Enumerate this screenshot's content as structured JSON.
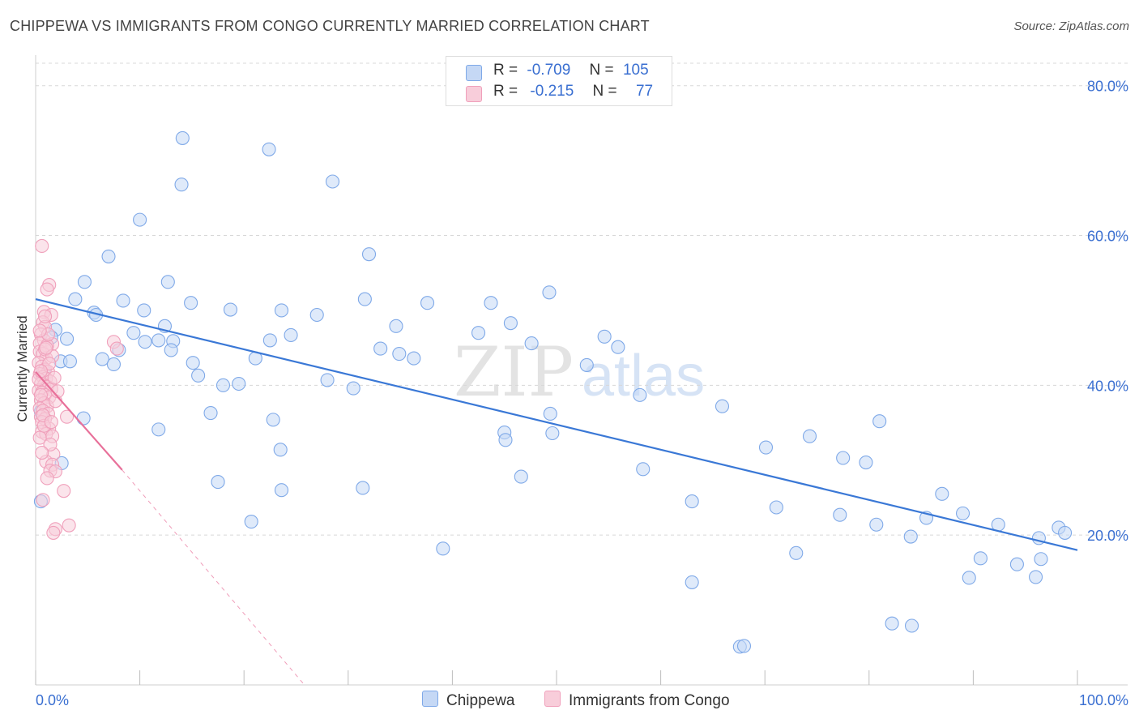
{
  "title": "CHIPPEWA VS IMMIGRANTS FROM CONGO CURRENTLY MARRIED CORRELATION CHART",
  "source": "Source: ZipAtlas.com",
  "watermark": {
    "zip": "ZIP",
    "atlas": "atlas"
  },
  "legend_top": {
    "rows": [
      {
        "r_label": "R =",
        "r_value": "-0.709",
        "n_label": "N =",
        "n_value": "105"
      },
      {
        "r_label": "R =",
        "r_value": "-0.215",
        "n_label": "N =",
        "n_value": "77"
      }
    ]
  },
  "chart_data": {
    "type": "scatter",
    "ylabel": "Currently Married",
    "xlim": [
      0,
      100
    ],
    "ylim": [
      0,
      83
    ],
    "x_tick_labels": [
      "0.0%",
      "100.0%"
    ],
    "y_ticks": [
      20,
      40,
      60,
      80
    ],
    "y_tick_labels": [
      "20.0%",
      "40.0%",
      "60.0%",
      "80.0%"
    ],
    "grid": "horizontal dashed",
    "legend_position": "bottom",
    "series": [
      {
        "name": "Chippewa",
        "color": "#7fa9e8",
        "fill": "#c5d8f5",
        "line_color": "#3a78d6",
        "trend": {
          "x1": 0,
          "y1": 51.5,
          "x2": 100,
          "y2": 18.0
        },
        "points": [
          [
            14.1,
            73.0
          ],
          [
            22.4,
            71.5
          ],
          [
            28.5,
            67.2
          ],
          [
            14.0,
            66.8
          ],
          [
            10.0,
            62.1
          ],
          [
            32.0,
            57.5
          ],
          [
            7.0,
            57.2
          ],
          [
            4.7,
            53.8
          ],
          [
            12.7,
            53.8
          ],
          [
            3.8,
            51.5
          ],
          [
            8.4,
            51.3
          ],
          [
            14.9,
            51.0
          ],
          [
            31.6,
            51.5
          ],
          [
            37.6,
            51.0
          ],
          [
            43.7,
            51.0
          ],
          [
            49.3,
            52.4
          ],
          [
            10.4,
            50.0
          ],
          [
            18.7,
            50.1
          ],
          [
            23.6,
            50.0
          ],
          [
            27.0,
            49.4
          ],
          [
            5.6,
            49.7
          ],
          [
            5.8,
            49.4
          ],
          [
            45.6,
            48.3
          ],
          [
            34.6,
            47.9
          ],
          [
            12.4,
            47.9
          ],
          [
            1.9,
            47.4
          ],
          [
            9.4,
            47.0
          ],
          [
            42.5,
            47.0
          ],
          [
            1.5,
            46.4
          ],
          [
            3.0,
            46.2
          ],
          [
            10.5,
            45.8
          ],
          [
            13.2,
            45.9
          ],
          [
            11.8,
            46.0
          ],
          [
            22.5,
            46.0
          ],
          [
            24.5,
            46.7
          ],
          [
            54.6,
            46.5
          ],
          [
            55.9,
            45.1
          ],
          [
            47.6,
            45.6
          ],
          [
            8.0,
            44.7
          ],
          [
            13.0,
            44.7
          ],
          [
            33.1,
            44.9
          ],
          [
            34.9,
            44.2
          ],
          [
            36.3,
            43.6
          ],
          [
            21.1,
            43.6
          ],
          [
            2.4,
            43.2
          ],
          [
            3.3,
            43.2
          ],
          [
            6.4,
            43.5
          ],
          [
            7.5,
            42.8
          ],
          [
            15.1,
            43.0
          ],
          [
            52.9,
            42.7
          ],
          [
            15.6,
            41.3
          ],
          [
            18.0,
            40.0
          ],
          [
            19.5,
            40.2
          ],
          [
            28.0,
            40.7
          ],
          [
            30.5,
            39.6
          ],
          [
            58.0,
            38.7
          ],
          [
            65.9,
            37.2
          ],
          [
            4.6,
            35.6
          ],
          [
            16.8,
            36.3
          ],
          [
            22.8,
            35.4
          ],
          [
            49.4,
            36.2
          ],
          [
            81.0,
            35.2
          ],
          [
            11.8,
            34.1
          ],
          [
            45.0,
            33.7
          ],
          [
            45.1,
            32.7
          ],
          [
            49.6,
            33.6
          ],
          [
            70.1,
            31.7
          ],
          [
            74.3,
            33.2
          ],
          [
            23.5,
            31.4
          ],
          [
            77.5,
            30.3
          ],
          [
            79.7,
            29.7
          ],
          [
            58.3,
            28.8
          ],
          [
            46.6,
            27.8
          ],
          [
            17.5,
            27.1
          ],
          [
            31.4,
            26.3
          ],
          [
            23.6,
            26.0
          ],
          [
            87.0,
            25.5
          ],
          [
            63.0,
            24.5
          ],
          [
            71.1,
            23.7
          ],
          [
            89.0,
            22.9
          ],
          [
            77.2,
            22.7
          ],
          [
            85.5,
            22.3
          ],
          [
            20.7,
            21.8
          ],
          [
            80.7,
            21.4
          ],
          [
            92.4,
            21.4
          ],
          [
            98.2,
            21.0
          ],
          [
            98.8,
            20.3
          ],
          [
            84.0,
            19.8
          ],
          [
            96.3,
            19.6
          ],
          [
            39.1,
            18.2
          ],
          [
            73.0,
            17.6
          ],
          [
            90.7,
            16.9
          ],
          [
            96.5,
            16.8
          ],
          [
            94.2,
            16.1
          ],
          [
            89.6,
            14.3
          ],
          [
            96.0,
            14.4
          ],
          [
            63.0,
            13.7
          ],
          [
            82.2,
            8.2
          ],
          [
            84.1,
            7.9
          ],
          [
            67.6,
            5.1
          ],
          [
            68.0,
            5.2
          ],
          [
            0.5,
            36.5
          ],
          [
            0.8,
            42.0
          ],
          [
            2.5,
            29.6
          ],
          [
            0.5,
            24.5
          ]
        ]
      },
      {
        "name": "Immigrants from Congo",
        "color": "#f0a0bb",
        "fill": "#f8cdda",
        "line_color": "#e8709a",
        "trend": {
          "x1": 0,
          "y1": 41.8,
          "x2": 8.3,
          "y2": 28.7
        },
        "trend_dashed": {
          "x1": 8.3,
          "y1": 28.7,
          "x2": 25.8,
          "y2": 0
        },
        "points": [
          [
            0.6,
            58.6
          ],
          [
            1.3,
            53.4
          ],
          [
            1.1,
            52.8
          ],
          [
            0.8,
            49.8
          ],
          [
            1.5,
            49.4
          ],
          [
            0.7,
            48.4
          ],
          [
            0.9,
            47.8
          ],
          [
            0.5,
            46.8
          ],
          [
            0.8,
            46.0
          ],
          [
            1.6,
            45.5
          ],
          [
            0.4,
            45.6
          ],
          [
            1.1,
            45.3
          ],
          [
            7.5,
            45.8
          ],
          [
            7.8,
            44.9
          ],
          [
            0.4,
            44.5
          ],
          [
            0.7,
            44.2
          ],
          [
            1.0,
            43.6
          ],
          [
            0.3,
            43.0
          ],
          [
            0.6,
            42.5
          ],
          [
            0.9,
            42.1
          ],
          [
            1.2,
            41.8
          ],
          [
            0.4,
            41.5
          ],
          [
            0.7,
            41.1
          ],
          [
            1.0,
            40.9
          ],
          [
            1.4,
            40.5
          ],
          [
            0.5,
            40.2
          ],
          [
            0.8,
            40.0
          ],
          [
            1.1,
            39.8
          ],
          [
            1.5,
            39.5
          ],
          [
            0.3,
            39.3
          ],
          [
            0.6,
            39.0
          ],
          [
            0.9,
            38.7
          ],
          [
            1.3,
            38.4
          ],
          [
            0.5,
            38.0
          ],
          [
            0.8,
            37.6
          ],
          [
            1.1,
            37.2
          ],
          [
            0.4,
            36.9
          ],
          [
            0.7,
            36.6
          ],
          [
            1.2,
            36.2
          ],
          [
            0.5,
            35.8
          ],
          [
            0.9,
            35.5
          ],
          [
            0.6,
            35.1
          ],
          [
            3.0,
            35.8
          ],
          [
            1.3,
            34.2
          ],
          [
            0.6,
            33.8
          ],
          [
            1.0,
            33.5
          ],
          [
            1.6,
            33.2
          ],
          [
            0.4,
            33.0
          ],
          [
            1.7,
            30.8
          ],
          [
            1.0,
            29.8
          ],
          [
            1.6,
            29.4
          ],
          [
            1.4,
            28.6
          ],
          [
            1.9,
            28.5
          ],
          [
            2.7,
            25.9
          ],
          [
            0.7,
            24.7
          ],
          [
            3.2,
            21.3
          ],
          [
            1.9,
            20.8
          ],
          [
            1.7,
            20.3
          ],
          [
            0.3,
            40.8
          ],
          [
            1.8,
            41.0
          ],
          [
            0.9,
            44.8
          ],
          [
            1.2,
            46.8
          ],
          [
            0.5,
            38.7
          ],
          [
            1.9,
            37.9
          ],
          [
            0.8,
            34.6
          ],
          [
            1.4,
            32.1
          ],
          [
            0.6,
            31.0
          ],
          [
            1.1,
            27.6
          ],
          [
            0.4,
            47.3
          ],
          [
            1.6,
            43.9
          ],
          [
            0.9,
            49.2
          ],
          [
            1.3,
            42.9
          ],
          [
            0.7,
            36.0
          ],
          [
            2.1,
            39.2
          ],
          [
            0.5,
            41.9
          ],
          [
            1.0,
            45.0
          ],
          [
            1.5,
            35.1
          ]
        ]
      }
    ]
  }
}
